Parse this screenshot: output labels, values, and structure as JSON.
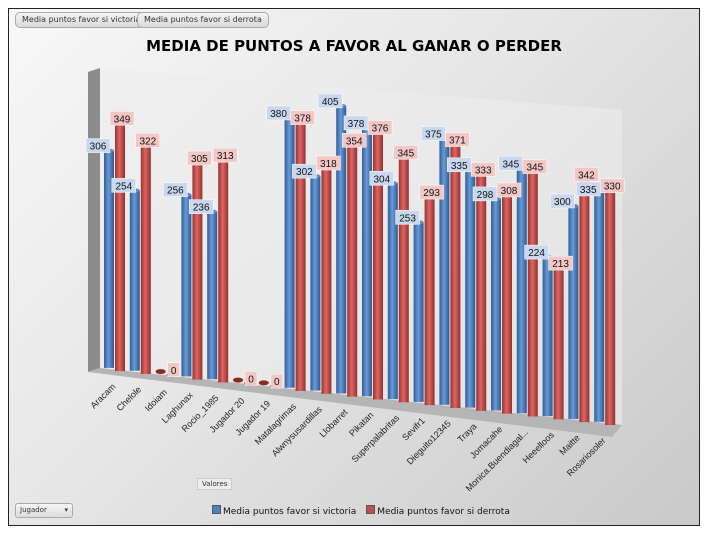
{
  "field_buttons": [
    "Media puntos favor si victoria",
    "Media puntos favor si derrota"
  ],
  "axis_field": "Jugador",
  "values_field": "Valores",
  "colors": {
    "victoria": "#4f81bd",
    "derrota": "#c0504d"
  },
  "chart_data": {
    "type": "bar",
    "title": "MEDIA DE PUNTOS A FAVOR AL GANAR O PERDER",
    "categories": [
      "Aracam",
      "Chelole",
      "Idoiam",
      "Laghunax",
      "Rocio_1985",
      "Jugador 20",
      "Jugador 19",
      "Matalagrimas",
      "Alwnysusardillas",
      "Llobarret",
      "Pikatan",
      "Superpalabritas",
      "Sevifr1",
      "Dieguito12345",
      "Traya",
      "Jomacahe",
      "Monica.Buendiagal...",
      "Heeelloos",
      "Maitte",
      "Rosariosoler"
    ],
    "series": [
      {
        "name": "Media puntos favor si victoria",
        "values": [
          306,
          254,
          0,
          256,
          236,
          0,
          0,
          380,
          302,
          405,
          378,
          304,
          253,
          375,
          335,
          298,
          345,
          224,
          300,
          335
        ]
      },
      {
        "name": "Media puntos favor si derrota",
        "values": [
          349,
          322,
          0,
          305,
          313,
          0,
          0,
          378,
          318,
          354,
          376,
          345,
          293,
          371,
          333,
          308,
          345,
          213,
          342,
          330
        ]
      }
    ],
    "ylim": [
      0,
      420
    ],
    "legend": "bottom"
  }
}
